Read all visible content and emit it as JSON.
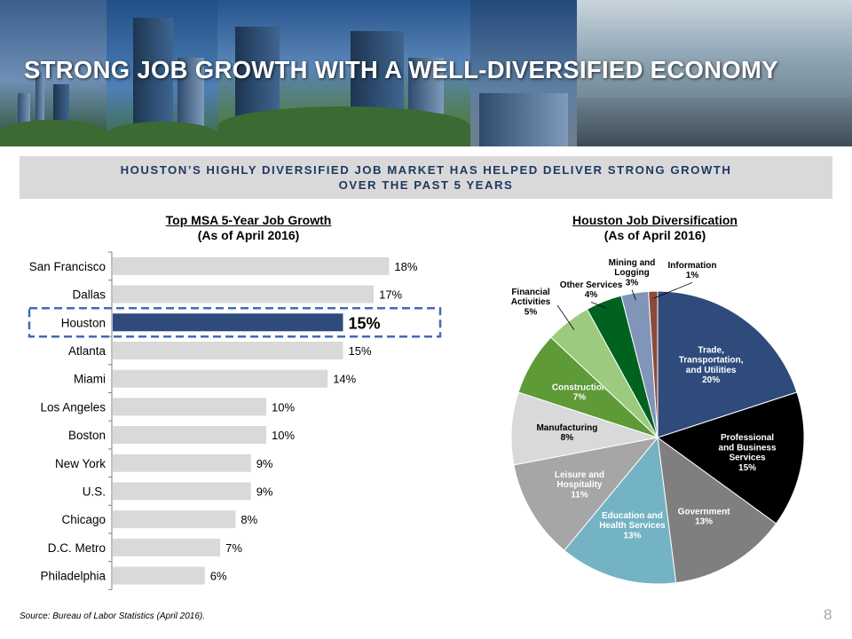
{
  "header": {
    "title": "STRONG JOB GROWTH WITH A WELL-DIVERSIFIED ECONOMY"
  },
  "subtitle": {
    "line1": "HOUSTON’S HIGHLY DIVERSIFIED JOB MARKET HAS HELPED DELIVER STRONG GROWTH",
    "line2": "OVER THE PAST 5 YEARS",
    "color": "#1f3864"
  },
  "footer": {
    "source": "Source: Bureau of Labor Statistics (April 2016).",
    "page": "8"
  },
  "chart_data": [
    {
      "type": "bar",
      "orientation": "horizontal",
      "title": "Top MSA 5-Year Job Growth",
      "subtitle": "(As of April 2016)",
      "categories": [
        "San Francisco",
        "Dallas",
        "Houston",
        "Atlanta",
        "Miami",
        "Los Angeles",
        "Boston",
        "New York",
        "U.S.",
        "Chicago",
        "D.C. Metro",
        "Philadelphia"
      ],
      "values": [
        18,
        17,
        15,
        15,
        14,
        10,
        10,
        9,
        9,
        8,
        7,
        6
      ],
      "value_labels": [
        "18%",
        "17%",
        "15%",
        "15%",
        "14%",
        "10%",
        "10%",
        "9%",
        "9%",
        "8%",
        "7%",
        "6%"
      ],
      "unit": "%",
      "highlight": "Houston",
      "bar_color": "#d9d9d9",
      "highlight_color": "#2f4b7c",
      "highlight_outline_color": "#3d6db5"
    },
    {
      "type": "pie",
      "title": "Houston Job Diversification",
      "subtitle": "(As of April 2016)",
      "slices": [
        {
          "label": [
            "Trade,",
            "Transportation,",
            "and Utilities"
          ],
          "value": 20,
          "value_label": "20%",
          "color": "#2f4b7c",
          "text_color": "#ffffff"
        },
        {
          "label": [
            "Professional",
            "and Business",
            "Services"
          ],
          "value": 15,
          "value_label": "15%",
          "color": "#000000",
          "text_color": "#ffffff"
        },
        {
          "label": [
            "Government"
          ],
          "value": 13,
          "value_label": "13%",
          "color": "#7f7f7f",
          "text_color": "#ffffff"
        },
        {
          "label": [
            "Education and",
            "Health Services"
          ],
          "value": 13,
          "value_label": "13%",
          "color": "#73b3c3",
          "text_color": "#ffffff"
        },
        {
          "label": [
            "Leisure and",
            "Hospitality"
          ],
          "value": 11,
          "value_label": "11%",
          "color": "#a6a6a6",
          "text_color": "#ffffff"
        },
        {
          "label": [
            "Manufacturing"
          ],
          "value": 8,
          "value_label": "8%",
          "color": "#d9d9d9",
          "text_color": "#000000"
        },
        {
          "label": [
            "Construction"
          ],
          "value": 7,
          "value_label": "7%",
          "color": "#5e9a36",
          "text_color": "#ffffff"
        },
        {
          "label": [
            "Financial",
            "Activities"
          ],
          "value": 5,
          "value_label": "5%",
          "color": "#9ccb7f",
          "text_color": "#000000"
        },
        {
          "label": [
            "Other Services"
          ],
          "value": 4,
          "value_label": "4%",
          "color": "#00621e",
          "text_color": "#000000"
        },
        {
          "label": [
            "Mining and",
            "Logging"
          ],
          "value": 3,
          "value_label": "3%",
          "color": "#8095b8",
          "text_color": "#000000"
        },
        {
          "label": [
            "Information"
          ],
          "value": 1,
          "value_label": "1%",
          "color": "#8b4a3a",
          "text_color": "#000000"
        }
      ]
    }
  ]
}
